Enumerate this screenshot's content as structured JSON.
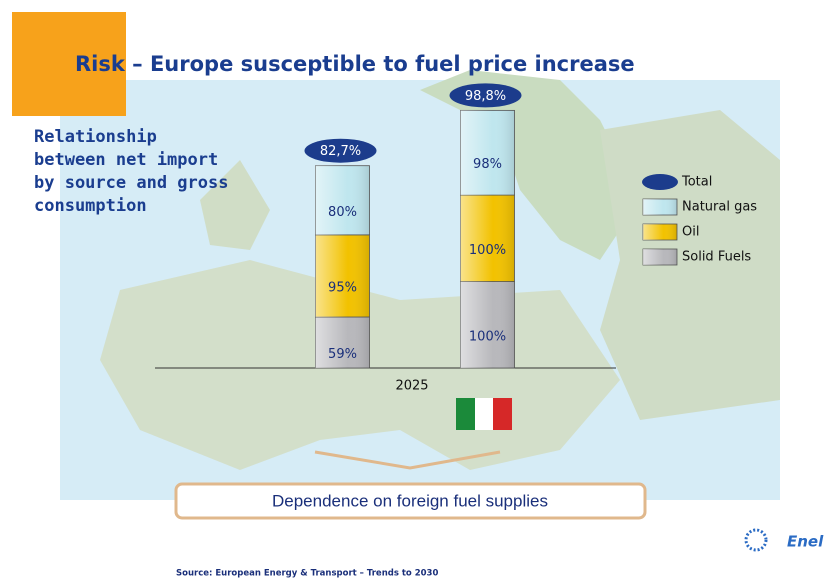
{
  "chart_data": {
    "type": "bar",
    "stacked": true,
    "title": "Risk – Europe susceptible to fuel price increase",
    "subtitle": "Relationship between net import by source and gross consumption",
    "x_label": "2025",
    "annotation": "Dependence  on foreign fuel supplies",
    "source": "Source: European Energy & Transport – Trends to 2030",
    "categories": [
      null,
      null
    ],
    "ylim": [
      0,
      310
    ],
    "series": [
      {
        "name": "Solid Fuels",
        "color": "#b8b8bc",
        "values": [
          59,
          100
        ],
        "value_labels": [
          "59%",
          "100%"
        ]
      },
      {
        "name": "Oil",
        "color": "#f2c200",
        "values": [
          95,
          100
        ],
        "value_labels": [
          "95%",
          "100%"
        ]
      },
      {
        "name": "Natural gas",
        "color": "#bfe6ee",
        "values": [
          80,
          98
        ],
        "value_labels": [
          "80%",
          "98%"
        ]
      },
      {
        "name": "Total",
        "color": "#1c3c8c",
        "stack": false,
        "values": [
          82.7,
          98.8
        ],
        "value_labels": [
          "82,7%",
          "98,8%"
        ]
      }
    ]
  },
  "logo": "Enel"
}
